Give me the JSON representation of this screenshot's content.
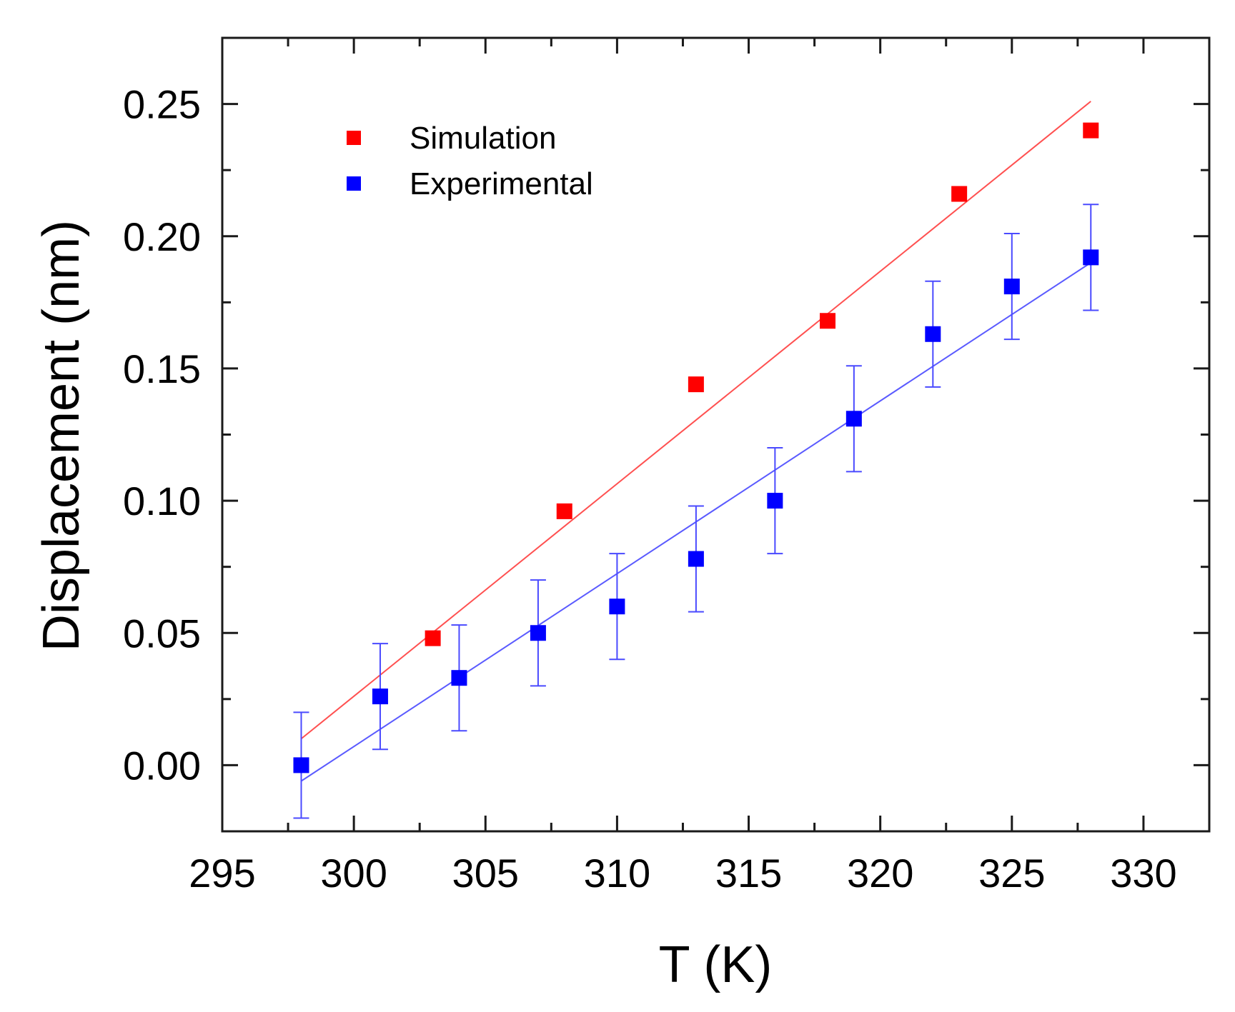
{
  "chart_data": {
    "type": "scatter",
    "title": "",
    "xlabel": "T (K)",
    "ylabel": "Displacement (nm)",
    "xlim": [
      295,
      332.5
    ],
    "ylim": [
      -0.025,
      0.275
    ],
    "xticks": [
      295,
      300,
      305,
      310,
      315,
      320,
      325,
      330
    ],
    "xtick_labels": [
      "295",
      "300",
      "305",
      "310",
      "315",
      "320",
      "325",
      "330"
    ],
    "yticks": [
      0.0,
      0.05,
      0.1,
      0.15,
      0.2,
      0.25
    ],
    "ytick_labels": [
      "0.00",
      "0.05",
      "0.10",
      "0.15",
      "0.20",
      "0.25"
    ],
    "grid": false,
    "legend_position": "top-left",
    "series": [
      {
        "name": "Simulation",
        "color": "#ff0000",
        "marker": "square",
        "x": [
          303,
          308,
          313,
          318,
          323,
          328
        ],
        "y": [
          0.048,
          0.096,
          0.144,
          0.168,
          0.216,
          0.24
        ],
        "fit": {
          "x": [
            298,
            328
          ],
          "y": [
            0.01,
            0.251
          ],
          "color": "#ff5050"
        }
      },
      {
        "name": "Experimental",
        "color": "#0000ff",
        "marker": "square",
        "x": [
          298,
          301,
          304,
          307,
          310,
          313,
          316,
          319,
          322,
          325,
          328
        ],
        "y": [
          0.0,
          0.026,
          0.033,
          0.05,
          0.06,
          0.078,
          0.1,
          0.131,
          0.163,
          0.181,
          0.192
        ],
        "yerr": [
          0.02,
          0.02,
          0.02,
          0.02,
          0.02,
          0.02,
          0.02,
          0.02,
          0.02,
          0.02,
          0.02
        ],
        "fit": {
          "x": [
            298,
            328
          ],
          "y": [
            -0.006,
            0.19
          ],
          "color": "#5a5aff"
        }
      }
    ]
  }
}
